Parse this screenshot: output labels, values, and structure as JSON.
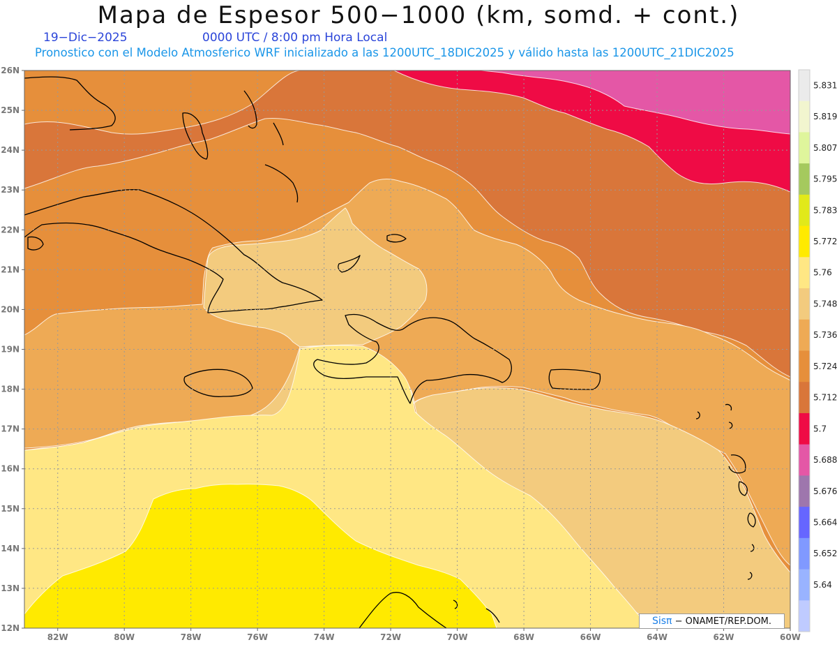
{
  "header": {
    "title": "Mapa de Espesor 500−1000 (km, somd. + cont.)",
    "date": "19−Dic−2025",
    "time": "0000 UTC / 8:00 pm Hora Local",
    "info": "Pronostico con el Modelo Atmosferico WRF inicializado a las 1200UTC_18DIC2025 y válido hasta las  1200UTC_21DIC2025"
  },
  "map": {
    "lon_range": [
      -83,
      -60
    ],
    "lat_range": [
      12,
      26
    ],
    "lon_ticks": [
      "82W",
      "80W",
      "78W",
      "76W",
      "74W",
      "72W",
      "70W",
      "68W",
      "66W",
      "64W",
      "62W",
      "60W"
    ],
    "lat_ticks": [
      "26N",
      "25N",
      "24N",
      "23N",
      "22N",
      "21N",
      "20N",
      "19N",
      "18N",
      "17N",
      "16N",
      "15N",
      "14N",
      "13N",
      "12N"
    ],
    "gridlines": true,
    "colors": {
      "5.688": "#e457a6",
      "5.7": "#ef0b45",
      "5.712": "#d9763a",
      "5.724": "#e68f3b",
      "5.736": "#eeaa55",
      "5.748": "#f3cb7e",
      "5.76": "#ffe784",
      "5.772": "#ffea00",
      "5.783": "#e1e91a",
      "5.795": "#a5c95e"
    }
  },
  "legend": {
    "levels": [
      "5.831",
      "5.819",
      "5.807",
      "5.795",
      "5.783",
      "5.772",
      "5.76",
      "5.748",
      "5.736",
      "5.724",
      "5.712",
      "5.7",
      "5.688",
      "5.676",
      "5.664",
      "5.652",
      "5.64"
    ],
    "colors": [
      "#ebebeb",
      "#f2f5cf",
      "#dff59c",
      "#a5c95e",
      "#e1e91a",
      "#ffea00",
      "#ffe784",
      "#f3cb7e",
      "#eeaa55",
      "#e68f3b",
      "#d9763a",
      "#ef0b45",
      "#e457a6",
      "#9e76ad",
      "#6666ff",
      "#8099ff",
      "#99b3ff",
      "#bfcbff"
    ]
  },
  "credit": {
    "brand": "Sisπ",
    "text": " − ONAMET/REP.DOM."
  }
}
